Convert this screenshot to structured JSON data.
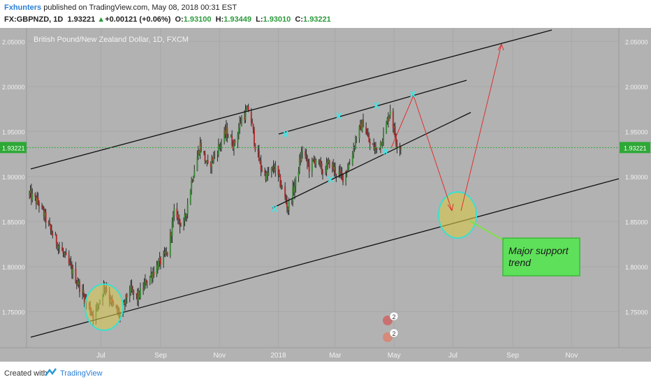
{
  "header": {
    "author": "Fxhunters",
    "published": " published on TradingView.com, May 08, 2018 00:31 EST",
    "symbol": "FX:GBPNZD, 1D",
    "last": "1.93221",
    "change_arrow": "▲",
    "change": "+0.00121 (+0.06%)",
    "o_label": "O:",
    "o_value": "1.93100",
    "h_label": "H:",
    "h_value": "1.93449",
    "l_label": "L:",
    "l_value": "1.93010",
    "c_label": "C:",
    "c_value": "1.93221"
  },
  "footer": {
    "created_with": "Created with",
    "brand": "TradingView"
  },
  "chart_data": {
    "type": "candlestick",
    "title": "British Pound/New Zealand Dollar, 1D, FXCM",
    "ylim": [
      1.71,
      2.065
    ],
    "y_ticks": [
      1.75,
      1.8,
      1.85,
      1.9,
      1.95,
      2.0,
      2.05
    ],
    "y_tick_labels": [
      "1.75000",
      "1.80000",
      "1.85000",
      "1.90000",
      "1.95000",
      "2.00000",
      "2.05000"
    ],
    "x_ticks": [
      {
        "label": "Jul",
        "date": "2017-07-01"
      },
      {
        "label": "Sep",
        "date": "2017-09-01"
      },
      {
        "label": "Nov",
        "date": "2017-11-01"
      },
      {
        "label": "2018",
        "date": "2018-01-01"
      },
      {
        "label": "Mar",
        "date": "2018-03-01"
      },
      {
        "label": "May",
        "date": "2018-05-01"
      },
      {
        "label": "Jul",
        "date": "2018-07-01"
      },
      {
        "label": "Sep",
        "date": "2018-09-01"
      },
      {
        "label": "Nov",
        "date": "2018-11-01"
      }
    ],
    "xlim": [
      "2017-04-15",
      "2018-12-20"
    ],
    "price_path": [
      [
        "2017-04-18",
        1.88
      ],
      [
        "2017-04-28",
        1.87
      ],
      [
        "2017-05-10",
        1.84
      ],
      [
        "2017-05-20",
        1.82
      ],
      [
        "2017-05-30",
        1.8
      ],
      [
        "2017-06-08",
        1.78
      ],
      [
        "2017-06-16",
        1.76
      ],
      [
        "2017-06-24",
        1.745
      ],
      [
        "2017-07-05",
        1.78
      ],
      [
        "2017-07-14",
        1.755
      ],
      [
        "2017-07-22",
        1.745
      ],
      [
        "2017-07-30",
        1.775
      ],
      [
        "2017-08-08",
        1.765
      ],
      [
        "2017-08-18",
        1.785
      ],
      [
        "2017-08-28",
        1.8
      ],
      [
        "2017-09-08",
        1.815
      ],
      [
        "2017-09-16",
        1.865
      ],
      [
        "2017-09-24",
        1.84
      ],
      [
        "2017-10-04",
        1.9
      ],
      [
        "2017-10-12",
        1.935
      ],
      [
        "2017-10-20",
        1.91
      ],
      [
        "2017-10-30",
        1.93
      ],
      [
        "2017-11-08",
        1.95
      ],
      [
        "2017-11-16",
        1.935
      ],
      [
        "2017-11-24",
        1.965
      ],
      [
        "2017-12-02",
        1.975
      ],
      [
        "2017-12-08",
        1.935
      ],
      [
        "2017-12-14",
        1.91
      ],
      [
        "2017-12-20",
        1.9
      ],
      [
        "2017-12-28",
        1.91
      ],
      [
        "2018-01-04",
        1.89
      ],
      [
        "2018-01-11",
        1.865
      ],
      [
        "2018-01-18",
        1.89
      ],
      [
        "2018-01-26",
        1.93
      ],
      [
        "2018-02-02",
        1.91
      ],
      [
        "2018-02-09",
        1.92
      ],
      [
        "2018-02-16",
        1.905
      ],
      [
        "2018-02-23",
        1.915
      ],
      [
        "2018-03-02",
        1.905
      ],
      [
        "2018-03-09",
        1.9
      ],
      [
        "2018-03-16",
        1.915
      ],
      [
        "2018-03-23",
        1.945
      ],
      [
        "2018-03-30",
        1.96
      ],
      [
        "2018-04-06",
        1.935
      ],
      [
        "2018-04-13",
        1.93
      ],
      [
        "2018-04-20",
        1.945
      ],
      [
        "2018-04-27",
        1.975
      ],
      [
        "2018-05-03",
        1.94
      ],
      [
        "2018-05-08",
        1.932
      ]
    ],
    "last_price": "1.93221",
    "annotation": "Major support trend"
  }
}
